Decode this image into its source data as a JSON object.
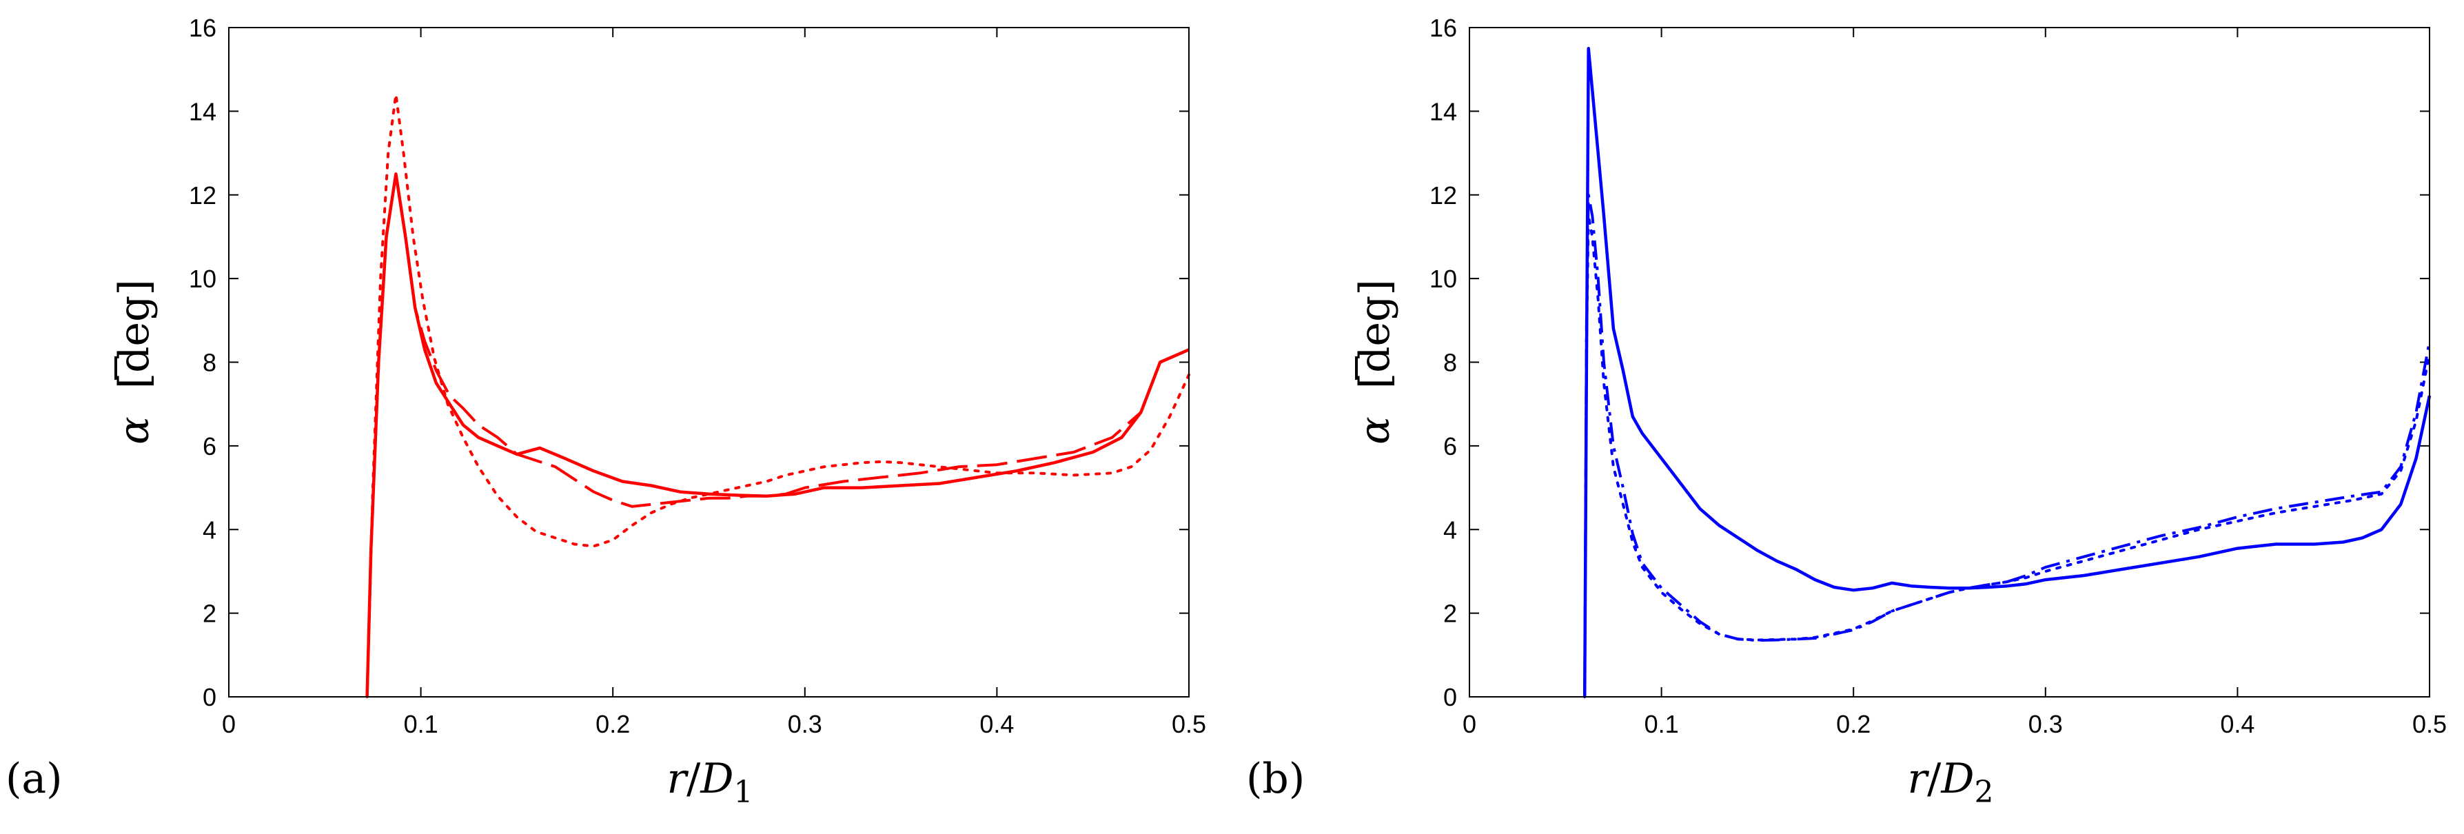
{
  "chart_data": [
    {
      "type": "line",
      "panel_label": "(a)",
      "xlabel": "r/D1",
      "xlabel_parts": {
        "r": "r",
        "slash": "/",
        "D": "D",
        "sub": "1"
      },
      "ylabel": "ᾱ [deg]",
      "ylabel_parts": {
        "symbol": "α",
        "unit": "[deg]"
      },
      "xlim": [
        0,
        0.5
      ],
      "ylim": [
        0,
        16
      ],
      "xticks": [
        0,
        0.1,
        0.2,
        0.3,
        0.4,
        0.5
      ],
      "xtick_labels": [
        "0",
        "0.1",
        "0.2",
        "0.3",
        "0.4",
        "0.5"
      ],
      "yticks": [
        0,
        2,
        4,
        6,
        8,
        10,
        12,
        14,
        16
      ],
      "ytick_labels": [
        "0",
        "2",
        "4",
        "6",
        "8",
        "10",
        "12",
        "14",
        "16"
      ],
      "color": "#ff0000",
      "series": [
        {
          "name": "solid",
          "style": "solid",
          "x": [
            0.072,
            0.074,
            0.078,
            0.082,
            0.087,
            0.092,
            0.097,
            0.102,
            0.108,
            0.115,
            0.122,
            0.13,
            0.14,
            0.15,
            0.162,
            0.175,
            0.19,
            0.205,
            0.22,
            0.235,
            0.25,
            0.265,
            0.28,
            0.295,
            0.31,
            0.33,
            0.35,
            0.37,
            0.39,
            0.41,
            0.43,
            0.45,
            0.465,
            0.475,
            0.485,
            0.5
          ],
          "y": [
            0,
            3.5,
            8,
            11,
            12.5,
            11,
            9.3,
            8.3,
            7.5,
            7,
            6.5,
            6.2,
            6,
            5.8,
            5.95,
            5.7,
            5.4,
            5.15,
            5.05,
            4.9,
            4.85,
            4.82,
            4.8,
            4.85,
            5,
            5,
            5.05,
            5.1,
            5.25,
            5.4,
            5.6,
            5.85,
            6.2,
            6.8,
            8,
            8.3
          ]
        },
        {
          "name": "dashed",
          "style": "dashed",
          "x": [
            0.072,
            0.074,
            0.078,
            0.082,
            0.087,
            0.092,
            0.097,
            0.102,
            0.108,
            0.115,
            0.122,
            0.13,
            0.14,
            0.15,
            0.16,
            0.17,
            0.18,
            0.19,
            0.2,
            0.21,
            0.22,
            0.23,
            0.24,
            0.25,
            0.26,
            0.27,
            0.28,
            0.29,
            0.3,
            0.32,
            0.34,
            0.36,
            0.38,
            0.4,
            0.42,
            0.44,
            0.46,
            0.475,
            0.485,
            0.5
          ],
          "y": [
            0,
            3.5,
            8,
            11,
            12.5,
            11,
            9.3,
            8.5,
            7.8,
            7.2,
            6.9,
            6.5,
            6.2,
            5.8,
            5.65,
            5.5,
            5.2,
            4.9,
            4.7,
            4.55,
            4.6,
            4.65,
            4.7,
            4.75,
            4.75,
            4.8,
            4.8,
            4.85,
            5,
            5.15,
            5.25,
            5.35,
            5.5,
            5.55,
            5.7,
            5.85,
            6.2,
            6.8,
            8,
            8.3
          ]
        },
        {
          "name": "dotted",
          "style": "dotted",
          "x": [
            0.072,
            0.075,
            0.079,
            0.083,
            0.087,
            0.091,
            0.096,
            0.101,
            0.107,
            0.114,
            0.122,
            0.13,
            0.14,
            0.15,
            0.16,
            0.17,
            0.18,
            0.19,
            0.2,
            0.21,
            0.22,
            0.23,
            0.24,
            0.25,
            0.26,
            0.27,
            0.28,
            0.29,
            0.3,
            0.31,
            0.32,
            0.33,
            0.34,
            0.35,
            0.36,
            0.38,
            0.4,
            0.42,
            0.44,
            0.46,
            0.47,
            0.48,
            0.49,
            0.5
          ],
          "y": [
            0,
            5,
            10,
            13,
            14.4,
            13,
            11,
            9.5,
            8.1,
            7,
            6.2,
            5.5,
            4.8,
            4.3,
            3.95,
            3.8,
            3.65,
            3.6,
            3.75,
            4.1,
            4.4,
            4.6,
            4.75,
            4.85,
            4.95,
            5.05,
            5.15,
            5.3,
            5.4,
            5.5,
            5.55,
            5.6,
            5.62,
            5.6,
            5.55,
            5.45,
            5.35,
            5.35,
            5.3,
            5.35,
            5.5,
            5.9,
            6.7,
            7.7
          ]
        }
      ]
    },
    {
      "type": "line",
      "panel_label": "(b)",
      "xlabel": "r/D2",
      "xlabel_parts": {
        "r": "r",
        "slash": "/",
        "D": "D",
        "sub": "2"
      },
      "ylabel": "ᾱ [deg]",
      "ylabel_parts": {
        "symbol": "α",
        "unit": "[deg]"
      },
      "xlim": [
        0,
        0.5
      ],
      "ylim": [
        0,
        16
      ],
      "xticks": [
        0,
        0.1,
        0.2,
        0.3,
        0.4,
        0.5
      ],
      "xtick_labels": [
        "0",
        "0.1",
        "0.2",
        "0.3",
        "0.4",
        "0.5"
      ],
      "yticks": [
        0,
        2,
        4,
        6,
        8,
        10,
        12,
        14,
        16
      ],
      "ytick_labels": [
        "0",
        "2",
        "4",
        "6",
        "8",
        "10",
        "12",
        "14",
        "16"
      ],
      "color": "#0000ff",
      "series": [
        {
          "name": "solid",
          "style": "solid",
          "x": [
            0.06,
            0.061,
            0.062,
            0.064,
            0.067,
            0.07,
            0.075,
            0.08,
            0.085,
            0.09,
            0.1,
            0.11,
            0.12,
            0.13,
            0.14,
            0.15,
            0.16,
            0.17,
            0.18,
            0.19,
            0.2,
            0.21,
            0.22,
            0.23,
            0.24,
            0.25,
            0.26,
            0.27,
            0.28,
            0.29,
            0.3,
            0.32,
            0.34,
            0.36,
            0.38,
            0.4,
            0.41,
            0.42,
            0.44,
            0.455,
            0.465,
            0.475,
            0.485,
            0.493,
            0.5
          ],
          "y": [
            0,
            8,
            15.5,
            14.5,
            13,
            11.5,
            8.8,
            7.8,
            6.7,
            6.3,
            5.7,
            5.1,
            4.5,
            4.1,
            3.8,
            3.5,
            3.25,
            3.05,
            2.8,
            2.62,
            2.55,
            2.6,
            2.72,
            2.65,
            2.62,
            2.6,
            2.6,
            2.62,
            2.65,
            2.7,
            2.8,
            2.9,
            3.05,
            3.2,
            3.35,
            3.55,
            3.6,
            3.65,
            3.65,
            3.7,
            3.8,
            4,
            4.6,
            5.7,
            7.2
          ]
        },
        {
          "name": "dashdot",
          "style": "dashdot",
          "x": [
            0.06,
            0.061,
            0.062,
            0.064,
            0.067,
            0.07,
            0.075,
            0.08,
            0.085,
            0.09,
            0.1,
            0.11,
            0.12,
            0.13,
            0.14,
            0.15,
            0.16,
            0.17,
            0.18,
            0.19,
            0.2,
            0.21,
            0.22,
            0.23,
            0.24,
            0.25,
            0.26,
            0.27,
            0.28,
            0.29,
            0.3,
            0.32,
            0.34,
            0.36,
            0.38,
            0.4,
            0.42,
            0.44,
            0.46,
            0.475,
            0.485,
            0.493,
            0.5
          ],
          "y": [
            0,
            9,
            12,
            11.5,
            10,
            8,
            6,
            5,
            3.9,
            3.2,
            2.6,
            2.2,
            1.8,
            1.5,
            1.38,
            1.35,
            1.36,
            1.38,
            1.4,
            1.5,
            1.6,
            1.8,
            2.05,
            2.2,
            2.35,
            2.5,
            2.6,
            2.68,
            2.75,
            2.9,
            3.1,
            3.35,
            3.6,
            3.85,
            4.05,
            4.3,
            4.5,
            4.65,
            4.8,
            4.9,
            5.5,
            6.8,
            8.5
          ]
        },
        {
          "name": "dotted",
          "style": "dotted",
          "x": [
            0.06,
            0.061,
            0.062,
            0.064,
            0.067,
            0.07,
            0.075,
            0.08,
            0.085,
            0.09,
            0.1,
            0.11,
            0.12,
            0.13,
            0.14,
            0.15,
            0.16,
            0.17,
            0.18,
            0.19,
            0.2,
            0.21,
            0.22,
            0.23,
            0.24,
            0.25,
            0.26,
            0.27,
            0.28,
            0.29,
            0.3,
            0.32,
            0.34,
            0.36,
            0.38,
            0.4,
            0.42,
            0.44,
            0.46,
            0.475,
            0.485,
            0.493,
            0.5
          ],
          "y": [
            0,
            8.5,
            11.5,
            11,
            9.5,
            7.5,
            5.5,
            4.6,
            3.7,
            3.1,
            2.5,
            2.1,
            1.75,
            1.5,
            1.38,
            1.36,
            1.37,
            1.38,
            1.42,
            1.52,
            1.62,
            1.82,
            2.05,
            2.2,
            2.35,
            2.5,
            2.6,
            2.68,
            2.75,
            2.85,
            3,
            3.25,
            3.5,
            3.75,
            4,
            4.2,
            4.4,
            4.55,
            4.7,
            4.85,
            5.4,
            6.6,
            8.2
          ]
        }
      ]
    }
  ]
}
